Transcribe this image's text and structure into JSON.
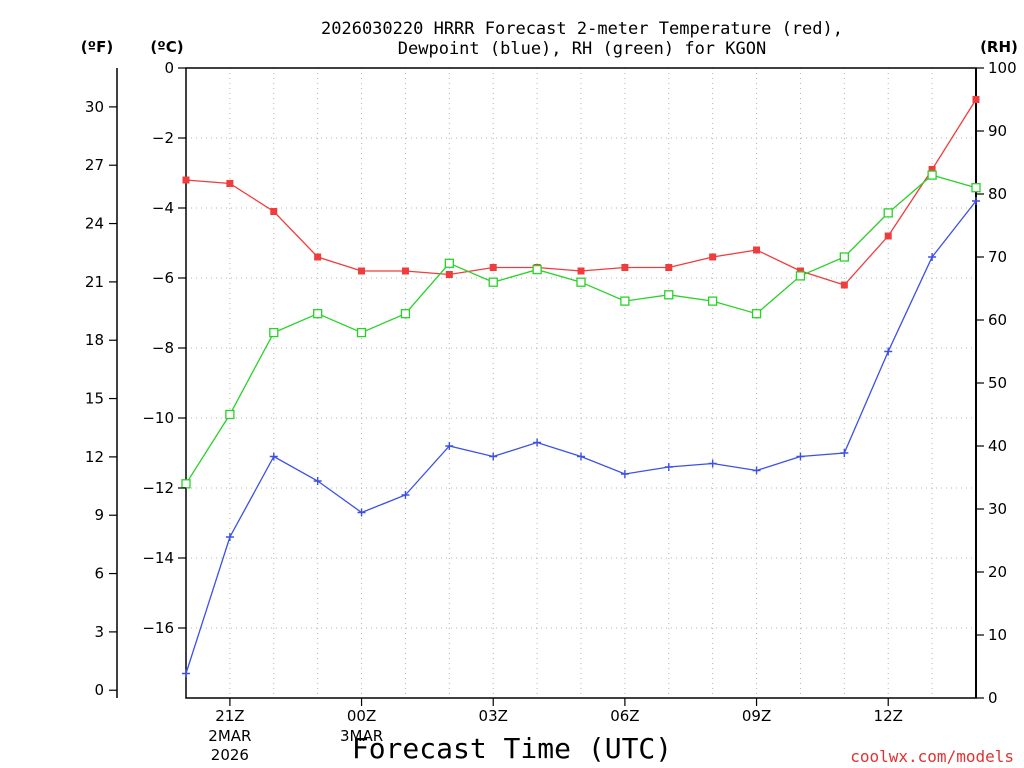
{
  "chart_data": {
    "type": "line",
    "title_line1": "2026030220 HRRR Forecast 2-meter Temperature (red),",
    "title_line2": "Dewpoint (blue), RH (green) for KGON",
    "xlabel": "Forecast Time (UTC)",
    "credit": "coolwx.com/models",
    "unit_left_f": "(ºF)",
    "unit_left_c": "(ºC)",
    "unit_right": "(RH)",
    "x_hours": [
      20,
      21,
      22,
      23,
      24,
      25,
      26,
      27,
      28,
      29,
      30,
      31,
      32,
      33,
      34,
      35,
      36,
      37,
      38
    ],
    "x_ticks": [
      {
        "hour": 21,
        "label": "21Z",
        "sub1": "2MAR",
        "sub2": "2026"
      },
      {
        "hour": 24,
        "label": "00Z",
        "sub1": "3MAR",
        "sub2": ""
      },
      {
        "hour": 27,
        "label": "03Z",
        "sub1": "",
        "sub2": ""
      },
      {
        "hour": 30,
        "label": "06Z",
        "sub1": "",
        "sub2": ""
      },
      {
        "hour": 33,
        "label": "09Z",
        "sub1": "",
        "sub2": ""
      },
      {
        "hour": 36,
        "label": "12Z",
        "sub1": "",
        "sub2": ""
      }
    ],
    "xlim": [
      20,
      38
    ],
    "ylim_c": [
      -18,
      0
    ],
    "ylim_rh": [
      0,
      100
    ],
    "yticks_c": [
      0,
      -2,
      -4,
      -6,
      -8,
      -10,
      -12,
      -14,
      -16
    ],
    "yticks_f": [
      0,
      3,
      6,
      9,
      12,
      15,
      18,
      21,
      24,
      27,
      30
    ],
    "yticks_rh": [
      0,
      10,
      20,
      30,
      40,
      50,
      60,
      70,
      80,
      90,
      100
    ],
    "series": [
      {
        "name": "Temperature",
        "units": "C",
        "color": "#f03c3c",
        "marker": "filled-square",
        "values": [
          -3.2,
          -3.3,
          -4.1,
          -5.4,
          -5.8,
          -5.8,
          -5.9,
          -5.7,
          -5.7,
          -5.8,
          -5.7,
          -5.7,
          -5.4,
          -5.2,
          -5.8,
          -6.2,
          -4.8,
          -2.9,
          -0.9
        ]
      },
      {
        "name": "Dewpoint",
        "units": "C",
        "color": "#3c50e6",
        "marker": "plus",
        "values": [
          -17.3,
          -13.4,
          -11.1,
          -11.8,
          -12.7,
          -12.2,
          -10.8,
          -11.1,
          -10.7,
          -11.1,
          -11.6,
          -11.4,
          -11.3,
          -11.5,
          -11.1,
          -11.0,
          -8.1,
          -5.4,
          -3.8
        ]
      },
      {
        "name": "RH",
        "units": "%",
        "color": "#28d228",
        "marker": "open-square",
        "values": [
          34,
          45,
          58,
          61,
          58,
          61,
          69,
          66,
          68,
          66,
          63,
          64,
          63,
          61,
          67,
          70,
          77,
          83,
          81
        ]
      }
    ]
  }
}
